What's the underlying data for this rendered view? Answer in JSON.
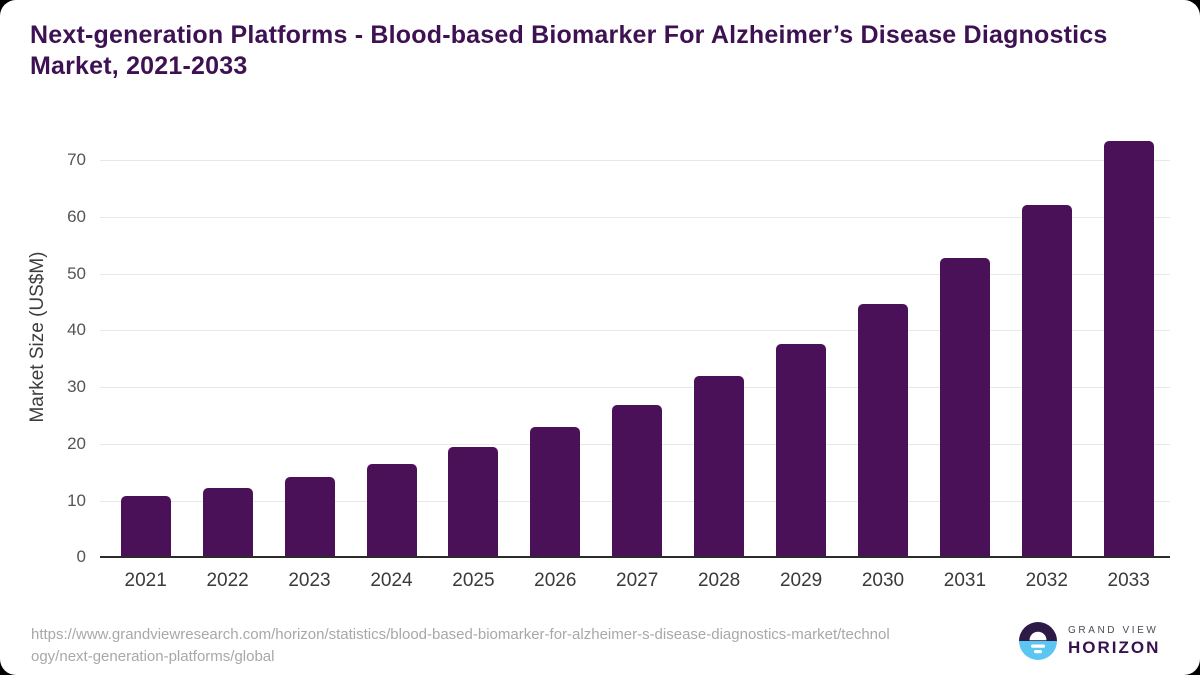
{
  "page": {
    "outer_background": "#000000",
    "card_background": "#FFFFFF"
  },
  "title": "Next-generation Platforms - Blood-based Biomarker For Alzheimer’s Disease Diagnostics Market, 2021-2033",
  "chart_data": {
    "type": "bar",
    "title": "Next-generation Platforms - Blood-based Biomarker For Alzheimer’s Disease Diagnostics Market, 2021-2033",
    "categories": [
      "2021",
      "2022",
      "2023",
      "2024",
      "2025",
      "2026",
      "2027",
      "2028",
      "2029",
      "2030",
      "2031",
      "2032",
      "2033"
    ],
    "values": [
      10.8,
      12.2,
      14.1,
      16.4,
      19.4,
      23.0,
      26.9,
      31.9,
      37.6,
      44.7,
      52.8,
      62.0,
      73.4
    ],
    "xlabel": "",
    "ylabel": "Market Size (US$M)",
    "yticks": [
      0,
      10,
      20,
      30,
      40,
      50,
      60,
      70
    ],
    "ylim": [
      0,
      75
    ],
    "grid": true,
    "legend": false,
    "bar_color": "#4A1159",
    "gridline_color": "#E8E8E8",
    "axis_line_color": "#2B2B2B"
  },
  "footer": {
    "source_lines": [
      "https://www.grandviewresearch.com/horizon/statistics/blood-based-biomarker-for-alzheimer-s-disease-diagnostics-market/technol",
      "ogy/next-generation-platforms/global"
    ],
    "logo": {
      "brand_top": "GRAND VIEW",
      "brand_bottom": "HORIZON",
      "icon": "horizon-sun-icon",
      "colors": {
        "dark_half": "#2E1A47",
        "light_half": "#5BC6F2",
        "sun": "#FFFFFF"
      }
    }
  }
}
